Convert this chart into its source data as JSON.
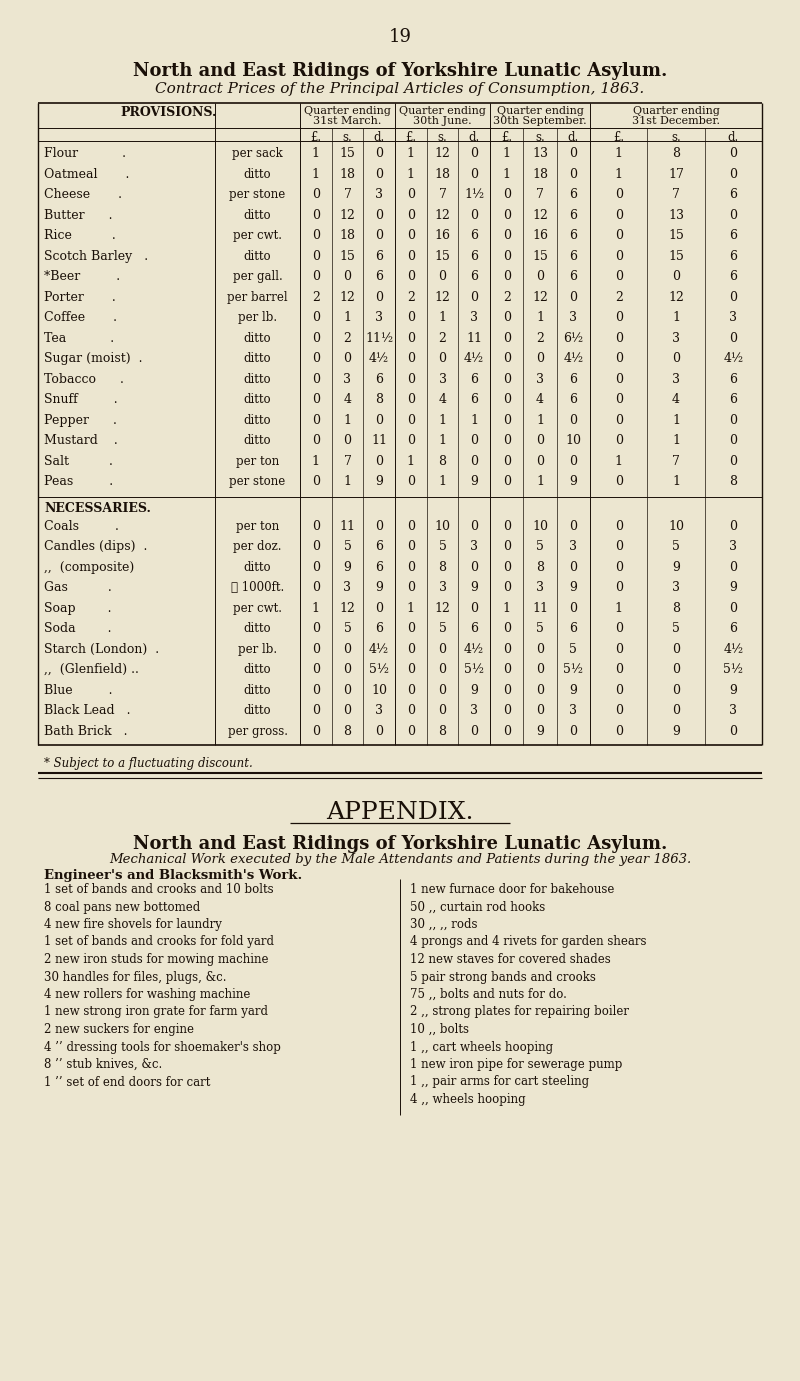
{
  "page_number": "19",
  "title1": "North and East Ridings of Yorkshire Lunatic Asylum.",
  "title2": "Contract Prices of the Principal Articles of Consumption, 1863.",
  "bg_color": "#ece6d0",
  "text_color": "#1a1008",
  "provisions_rows": [
    [
      "Flour           .",
      "per sack",
      "1",
      "15",
      "0",
      "1",
      "12",
      "0",
      "1",
      "13",
      "0",
      "1",
      "8",
      "0"
    ],
    [
      "Oatmeal       .",
      "ditto",
      "1",
      "18",
      "0",
      "1",
      "18",
      "0",
      "1",
      "18",
      "0",
      "1",
      "17",
      "0"
    ],
    [
      "Cheese       .",
      "per stone",
      "0",
      "7",
      "3",
      "0",
      "7",
      "1½",
      "0",
      "7",
      "6",
      "0",
      "7",
      "6"
    ],
    [
      "Butter      .",
      "ditto",
      "0",
      "12",
      "0",
      "0",
      "12",
      "0",
      "0",
      "12",
      "6",
      "0",
      "13",
      "0"
    ],
    [
      "Rice          .",
      "per cwt.",
      "0",
      "18",
      "0",
      "0",
      "16",
      "6",
      "0",
      "16",
      "6",
      "0",
      "15",
      "6"
    ],
    [
      "Scotch Barley   .",
      "ditto",
      "0",
      "15",
      "6",
      "0",
      "15",
      "6",
      "0",
      "15",
      "6",
      "0",
      "15",
      "6"
    ],
    [
      "*Beer         .",
      "per gall.",
      "0",
      "0",
      "6",
      "0",
      "0",
      "6",
      "0",
      "0",
      "6",
      "0",
      "0",
      "6"
    ],
    [
      "Porter       .",
      "per barrel",
      "2",
      "12",
      "0",
      "2",
      "12",
      "0",
      "2",
      "12",
      "0",
      "2",
      "12",
      "0"
    ],
    [
      "Coffee       .",
      "per lb.",
      "0",
      "1",
      "3",
      "0",
      "1",
      "3",
      "0",
      "1",
      "3",
      "0",
      "1",
      "3"
    ],
    [
      "Tea           .",
      "ditto",
      "0",
      "2",
      "11½",
      "0",
      "2",
      "11",
      "0",
      "2",
      "6½",
      "0",
      "3",
      "0"
    ],
    [
      "Sugar (moist)  .",
      "ditto",
      "0",
      "0",
      "4½",
      "0",
      "0",
      "4½",
      "0",
      "0",
      "4½",
      "0",
      "0",
      "4½"
    ],
    [
      "Tobacco      .",
      "ditto",
      "0",
      "3",
      "6",
      "0",
      "3",
      "6",
      "0",
      "3",
      "6",
      "0",
      "3",
      "6"
    ],
    [
      "Snuff         .",
      "ditto",
      "0",
      "4",
      "8",
      "0",
      "4",
      "6",
      "0",
      "4",
      "6",
      "0",
      "4",
      "6"
    ],
    [
      "Pepper      .",
      "ditto",
      "0",
      "1",
      "0",
      "0",
      "1",
      "1",
      "0",
      "1",
      "0",
      "0",
      "1",
      "0"
    ],
    [
      "Mustard    .",
      "ditto",
      "0",
      "0",
      "11",
      "0",
      "1",
      "0",
      "0",
      "0",
      "10",
      "0",
      "1",
      "0"
    ],
    [
      "Salt          .",
      "per ton",
      "1",
      "7",
      "0",
      "1",
      "8",
      "0",
      "0",
      "0",
      "0",
      "1",
      "7",
      "0"
    ],
    [
      "Peas         .",
      "per stone",
      "0",
      "1",
      "9",
      "0",
      "1",
      "9",
      "0",
      "1",
      "9",
      "0",
      "1",
      "8"
    ]
  ],
  "necessaries_rows": [
    [
      "Coals         .",
      "per ton",
      "0",
      "11",
      "0",
      "0",
      "10",
      "0",
      "0",
      "10",
      "0",
      "0",
      "10",
      "0"
    ],
    [
      "Candles (dips)  .",
      "per doz.",
      "0",
      "5",
      "6",
      "0",
      "5",
      "3",
      "0",
      "5",
      "3",
      "0",
      "5",
      "3"
    ],
    [
      ",,  (composite)",
      "ditto",
      "0",
      "9",
      "6",
      "0",
      "8",
      "0",
      "0",
      "8",
      "0",
      "0",
      "9",
      "0"
    ],
    [
      "Gas          .",
      "⒗ 1000ft.",
      "0",
      "3",
      "9",
      "0",
      "3",
      "9",
      "0",
      "3",
      "9",
      "0",
      "3",
      "9"
    ],
    [
      "Soap        .",
      "per cwt.",
      "1",
      "12",
      "0",
      "1",
      "12",
      "0",
      "1",
      "11",
      "0",
      "1",
      "8",
      "0"
    ],
    [
      "Soda        .",
      "ditto",
      "0",
      "5",
      "6",
      "0",
      "5",
      "6",
      "0",
      "5",
      "6",
      "0",
      "5",
      "6"
    ],
    [
      "Starch (London)  .",
      "per lb.",
      "0",
      "0",
      "4½",
      "0",
      "0",
      "4½",
      "0",
      "0",
      "5",
      "0",
      "0",
      "4½"
    ],
    [
      ",,  (Glenfield) ..",
      "ditto",
      "0",
      "0",
      "5½",
      "0",
      "0",
      "5½",
      "0",
      "0",
      "5½",
      "0",
      "0",
      "5½"
    ],
    [
      "Blue         .",
      "ditto",
      "0",
      "0",
      "10",
      "0",
      "0",
      "9",
      "0",
      "0",
      "9",
      "0",
      "0",
      "9"
    ],
    [
      "Black Lead   .",
      "ditto",
      "0",
      "0",
      "3",
      "0",
      "0",
      "3",
      "0",
      "0",
      "3",
      "0",
      "0",
      "3"
    ],
    [
      "Bath Brick   .",
      "per gross.",
      "0",
      "8",
      "0",
      "0",
      "8",
      "0",
      "0",
      "9",
      "0",
      "0",
      "9",
      "0"
    ]
  ],
  "item_labels": [
    "Flour           .",
    "Oatmeal       .",
    "Cheese       .",
    "Butter      .",
    "Rice          .",
    "Scotch Barley   .",
    "*Beer         .",
    "Porter       .",
    "Coffee       .",
    "Tea           .",
    "Sugar (moist)  .",
    "Tobacco      .",
    "Snuff         .",
    "Pepper      .",
    "Mustard    .",
    "Salt          .",
    "Peas         ."
  ],
  "footnote": "* Subject to a fluctuating discount.",
  "appendix_title": "APPENDIX.",
  "appendix_sub1": "North and East Ridings of Yorkshire Lunatic Asylum.",
  "appendix_sub2": "Mechanical Work executed by the Male Attendants and Patients during the year 1863.",
  "appendix_sub3": "Engineer's and Blacksmith's Work.",
  "left_col": [
    "1 set of bands and crooks and 10 bolts",
    "8 coal pans new bottomed",
    "4 new fire shovels for laundry",
    "1 set of bands and crooks for fold yard",
    "2 new iron studs for mowing machine",
    "30 handles for files, plugs, &c.",
    "4 new rollers for washing machine",
    "1 new strong iron grate for farm yard",
    "2 new suckers for engine",
    "4 ’’ dressing tools for shoemaker's shop",
    "8 ’’ stub knives, &c.",
    "1 ’’ set of end doors for cart"
  ],
  "right_col": [
    "1 new furnace door for bakehouse",
    "50 ,, curtain rod hooks",
    "30 ,, ,, rods",
    "4 prongs and 4 rivets for garden shears",
    "12 new staves for covered shades",
    "5 pair strong bands and crooks",
    "75 ,, bolts and nuts for do.",
    "2 ,, strong plates for repairing boiler",
    "10 ,, bolts",
    "1 ,, cart wheels hooping",
    "1 new iron pipe for sewerage pump",
    "1 ,, pair arms for cart steeling",
    "4 ,, wheels hooping"
  ]
}
